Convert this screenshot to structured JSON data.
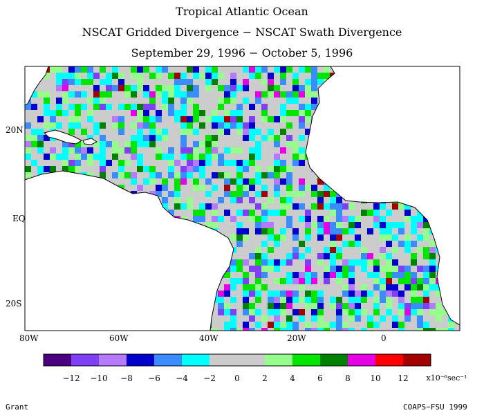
{
  "title": "Tropical Atlantic Ocean",
  "subtitle": "NSCAT Gridded Divergence − NSCAT Swath Divergence",
  "dates": "September 29, 1996 − October 5, 1996",
  "credit_left": "Grant",
  "credit_right": "COAPS−FSU 1999",
  "chart_data": {
    "type": "heatmap",
    "title": "Tropical Atlantic Ocean",
    "subtitle": "NSCAT Gridded Divergence − NSCAT Swath Divergence",
    "period": "September 29, 1996 − October 5, 1996",
    "x_ticks": [
      "80W",
      "60W",
      "40W",
      "20W",
      "0"
    ],
    "x_tick_values": [
      -80,
      -60,
      -40,
      -20,
      0
    ],
    "y_ticks": [
      "20N",
      "EQ",
      "20S"
    ],
    "y_tick_values": [
      20,
      0,
      -20
    ],
    "xlim": [
      -80,
      16
    ],
    "ylim": [
      -25,
      30
    ],
    "colorbar": {
      "tick_labels": [
        "−12",
        "−10",
        "−8",
        "−6",
        "−4",
        "−2",
        "0",
        "2",
        "4",
        "6",
        "8",
        "10",
        "12"
      ],
      "tick_values": [
        -12,
        -10,
        -8,
        -6,
        -4,
        -2,
        0,
        2,
        4,
        6,
        8,
        10,
        12
      ],
      "unit_label": "x10⁻⁶sec⁻¹",
      "colors": [
        "#4b0082",
        "#7f3ff5",
        "#b57aff",
        "#0000cd",
        "#3a8cff",
        "#00ffff",
        "#cccccc",
        "#cccccc",
        "#96ff8c",
        "#00e600",
        "#008200",
        "#e600e6",
        "#ff0000",
        "#a50000"
      ]
    },
    "land_color": "#ffffff",
    "coastline_color": "#000000"
  }
}
